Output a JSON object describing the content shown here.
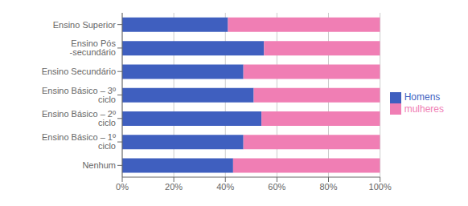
{
  "chart_data": {
    "type": "bar",
    "orientation": "horizontal",
    "stacked": true,
    "categories": [
      "Ensino Superior",
      "Ensino Pós -secundário",
      "Ensino Secundário",
      "Ensino Básico – 3º ciclo",
      "Ensino Básico – 2º ciclo",
      "Ensino Básico – 1º ciclo",
      "Nenhum"
    ],
    "series": [
      {
        "name": "Homens",
        "color": "#3F5FBF",
        "values": [
          41,
          55,
          47,
          51,
          54,
          47,
          43
        ]
      },
      {
        "name": "mulheres",
        "color": "#F07EB4",
        "values": [
          59,
          45,
          53,
          49,
          46,
          53,
          57
        ]
      }
    ],
    "xlim": [
      0,
      100
    ],
    "xticks": [
      {
        "value": 0,
        "label": "0%"
      },
      {
        "value": 20,
        "label": "20%"
      },
      {
        "value": 40,
        "label": "40%"
      },
      {
        "value": 60,
        "label": "60%"
      },
      {
        "value": 80,
        "label": "80%"
      },
      {
        "value": 100,
        "label": "100%"
      }
    ],
    "grid": true,
    "legend": "right"
  }
}
